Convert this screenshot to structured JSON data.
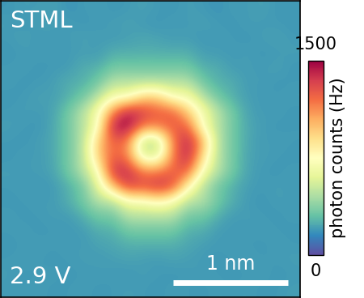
{
  "chart_data": {
    "type": "heatmap",
    "annotations": [
      "STML",
      "2.9 V"
    ],
    "scale_bar": {
      "label": "1 nm",
      "length": 1
    },
    "xlim": [
      0,
      2.6
    ],
    "ylim": [
      0,
      2.6
    ],
    "tick_labels": false,
    "colorbar_label": "photon counts (Hz)",
    "colorbar_lim": [
      0,
      1500
    ],
    "colorbar_ticks": [
      0,
      1500
    ],
    "cells": [
      [
        190,
        210,
        200,
        220,
        180,
        200,
        210,
        190,
        200,
        220,
        200,
        190,
        210,
        200,
        180,
        210,
        200,
        220,
        190,
        200
      ],
      [
        210,
        190,
        220,
        200,
        210,
        190,
        200,
        210,
        220,
        200,
        190,
        210,
        200,
        220,
        200,
        190,
        210,
        200,
        200,
        190
      ],
      [
        200,
        220,
        190,
        210,
        200,
        220,
        210,
        200,
        210,
        230,
        220,
        200,
        210,
        190,
        210,
        200,
        190,
        210,
        220,
        200
      ],
      [
        190,
        200,
        210,
        200,
        200,
        210,
        200,
        250,
        250,
        250,
        250,
        250,
        250,
        210,
        200,
        200,
        210,
        190,
        200,
        210
      ],
      [
        200,
        210,
        190,
        200,
        200,
        250,
        250,
        330,
        330,
        330,
        330,
        330,
        330,
        250,
        250,
        200,
        210,
        200,
        220,
        190
      ],
      [
        210,
        190,
        200,
        210,
        250,
        250,
        330,
        480,
        480,
        480,
        480,
        480,
        480,
        330,
        250,
        250,
        200,
        210,
        190,
        200
      ],
      [
        190,
        200,
        220,
        210,
        250,
        330,
        480,
        700,
        700,
        950,
        950,
        700,
        700,
        480,
        330,
        250,
        210,
        200,
        200,
        210
      ],
      [
        200,
        210,
        200,
        220,
        330,
        480,
        700,
        1150,
        1450,
        1350,
        1250,
        1250,
        950,
        700,
        480,
        330,
        220,
        200,
        210,
        190
      ],
      [
        210,
        200,
        190,
        230,
        330,
        480,
        700,
        1450,
        1500,
        1150,
        1150,
        1250,
        1250,
        700,
        480,
        330,
        230,
        210,
        190,
        200
      ],
      [
        200,
        190,
        210,
        230,
        330,
        480,
        950,
        1250,
        1150,
        450,
        450,
        1150,
        1450,
        1050,
        480,
        330,
        230,
        200,
        210,
        200
      ],
      [
        190,
        210,
        200,
        230,
        330,
        480,
        950,
        1250,
        1150,
        600,
        600,
        1150,
        1450,
        900,
        480,
        330,
        220,
        210,
        200,
        190
      ],
      [
        210,
        200,
        210,
        220,
        330,
        480,
        700,
        1400,
        1400,
        1150,
        1150,
        1250,
        1250,
        700,
        480,
        330,
        220,
        200,
        190,
        210
      ],
      [
        200,
        210,
        190,
        200,
        250,
        330,
        600,
        1000,
        1350,
        1300,
        1400,
        1300,
        800,
        480,
        330,
        250,
        210,
        200,
        210,
        200
      ],
      [
        190,
        200,
        210,
        200,
        250,
        330,
        480,
        480,
        700,
        700,
        800,
        700,
        480,
        480,
        330,
        250,
        200,
        190,
        210,
        200
      ],
      [
        210,
        190,
        200,
        210,
        200,
        250,
        330,
        330,
        480,
        480,
        480,
        480,
        330,
        330,
        250,
        200,
        210,
        200,
        190,
        210
      ],
      [
        200,
        210,
        190,
        200,
        200,
        200,
        250,
        250,
        330,
        330,
        330,
        330,
        250,
        250,
        200,
        200,
        200,
        210,
        200,
        190
      ],
      [
        190,
        200,
        210,
        200,
        210,
        200,
        220,
        230,
        250,
        250,
        250,
        250,
        230,
        210,
        200,
        210,
        200,
        190,
        210,
        200
      ],
      [
        200,
        210,
        200,
        190,
        200,
        210,
        200,
        210,
        220,
        210,
        200,
        220,
        210,
        200,
        190,
        200,
        210,
        200,
        200,
        210
      ],
      [
        210,
        190,
        200,
        210,
        190,
        200,
        210,
        200,
        190,
        210,
        200,
        190,
        200,
        210,
        200,
        190,
        200,
        210,
        190,
        200
      ],
      [
        200,
        200,
        210,
        190,
        200,
        210,
        190,
        200,
        210,
        200,
        190,
        210,
        200,
        190,
        210,
        200,
        210,
        190,
        200,
        210
      ]
    ]
  }
}
